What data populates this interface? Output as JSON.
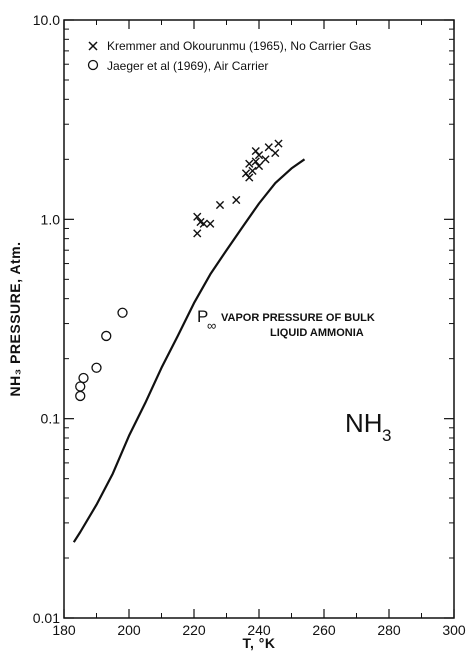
{
  "chart_data": {
    "type": "scatter",
    "title": "",
    "xlabel": "T, °K",
    "ylabel": "NH₃ PRESSURE, Atm.",
    "xlim": [
      180,
      300
    ],
    "ylim": [
      0.01,
      10.0
    ],
    "yscale": "log",
    "grid": false,
    "legend_placement": "top-left",
    "x_ticks": [
      180,
      200,
      220,
      240,
      260,
      280,
      300
    ],
    "x_tick_labels": [
      "180",
      "200",
      "220",
      "240",
      "260",
      "280",
      "300"
    ],
    "y_ticks": [
      0.01,
      0.1,
      1.0,
      10.0
    ],
    "y_tick_labels": [
      "0.01",
      "0.1",
      "1.0",
      "10.0"
    ],
    "series": [
      {
        "name": "Kremmer and Okourunmu (1965), No Carrier Gas",
        "marker": "x",
        "x": [
          221,
          221,
          222,
          223,
          225,
          228,
          233,
          236,
          237,
          237,
          238,
          239,
          239,
          240,
          240,
          242,
          243,
          245,
          246
        ],
        "y": [
          0.85,
          1.03,
          0.97,
          0.95,
          0.95,
          1.18,
          1.25,
          1.7,
          1.62,
          1.9,
          1.75,
          1.95,
          2.2,
          1.85,
          2.1,
          2.0,
          2.3,
          2.15,
          2.4
        ]
      },
      {
        "name": "Jaeger et al (1969), Air Carrier",
        "marker": "o",
        "x": [
          185,
          185,
          186,
          190,
          193,
          198
        ],
        "y": [
          0.13,
          0.145,
          0.16,
          0.18,
          0.26,
          0.34
        ]
      },
      {
        "name": "",
        "marker": "line",
        "x": [
          183,
          185,
          190,
          195,
          200,
          205,
          210,
          215,
          220,
          225,
          230,
          235,
          240,
          245,
          250,
          254
        ],
        "y": [
          0.024,
          0.027,
          0.037,
          0.053,
          0.082,
          0.12,
          0.18,
          0.26,
          0.38,
          0.53,
          0.7,
          0.92,
          1.2,
          1.52,
          1.8,
          2.0
        ]
      }
    ],
    "annotations": {
      "curve_symbol": "P",
      "curve_subscript": "∞",
      "curve_label_line1": "VAPOR PRESSURE OF BULK",
      "curve_label_line2": "LIQUID AMMONIA",
      "species_label": "NH",
      "species_subscript": "3"
    }
  }
}
